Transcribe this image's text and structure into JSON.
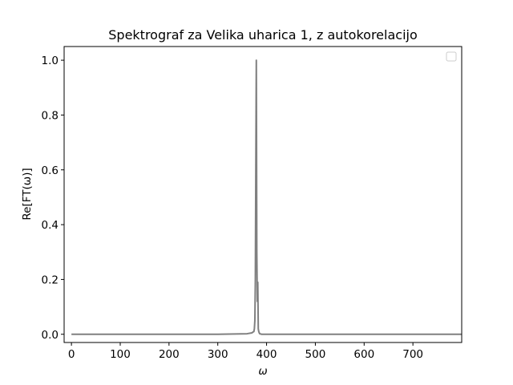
{
  "chart_data": {
    "type": "line",
    "title": "Spektrograf za Velika uharica 1, z autokorelacijo",
    "xlabel": "ω",
    "ylabel": "Re[FT(ω)]",
    "xlim": [
      -15,
      800
    ],
    "ylim": [
      -0.03,
      1.05
    ],
    "xticks": [
      "0",
      "100",
      "200",
      "300",
      "400",
      "500",
      "600",
      "700"
    ],
    "yticks": [
      "0.0",
      "0.2",
      "0.4",
      "0.6",
      "0.8",
      "1.0"
    ],
    "grid": false,
    "legend": {
      "position": "top-right",
      "entries": []
    },
    "series": [
      {
        "color": "#808080",
        "x": [
          0,
          100,
          200,
          300,
          360,
          370,
          372,
          374,
          375,
          376,
          377,
          378,
          379,
          380,
          381,
          382,
          383,
          384,
          385,
          386,
          390,
          400,
          500,
          600,
          700,
          800
        ],
        "y": [
          0,
          0,
          0,
          0,
          0.002,
          0.005,
          0.008,
          0.01,
          0.02,
          0.05,
          0.2,
          0.62,
          1.0,
          0.3,
          0.12,
          0.19,
          0.02,
          0.01,
          0.005,
          0.002,
          0,
          0,
          0,
          0,
          0,
          0
        ]
      }
    ]
  }
}
